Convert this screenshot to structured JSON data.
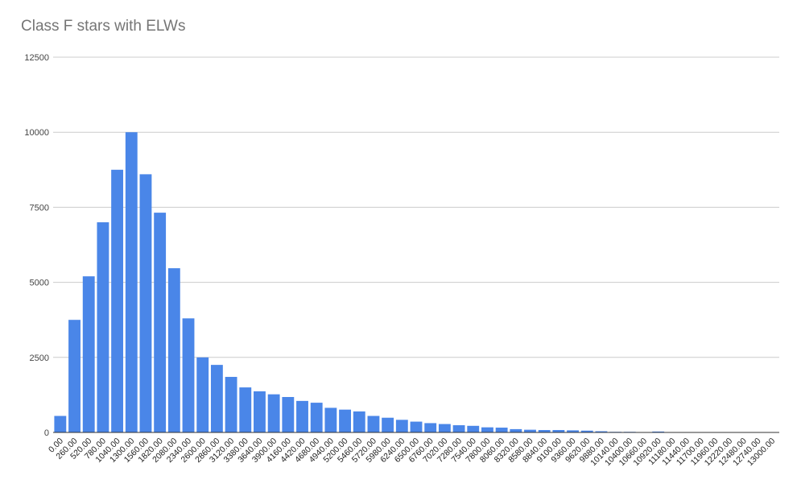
{
  "chart_data": {
    "type": "bar",
    "title": "Class F stars with ELWs",
    "xlabel": "",
    "ylabel": "",
    "ylim": [
      0,
      12500
    ],
    "yticks": [
      "0",
      "2500",
      "5000",
      "7500",
      "10000",
      "12500"
    ],
    "grid": true,
    "legend": "none",
    "bar_color": "#4a86e8",
    "categories": [
      "0.00",
      "260.00",
      "520.00",
      "780.00",
      "1040.00",
      "1300.00",
      "1560.00",
      "1820.00",
      "2080.00",
      "2340.00",
      "2600.00",
      "2860.00",
      "3120.00",
      "3380.00",
      "3640.00",
      "3900.00",
      "4160.00",
      "4420.00",
      "4680.00",
      "4940.00",
      "5200.00",
      "5460.00",
      "5720.00",
      "5980.00",
      "6240.00",
      "6500.00",
      "6760.00",
      "7020.00",
      "7280.00",
      "7540.00",
      "7800.00",
      "8060.00",
      "8320.00",
      "8580.00",
      "8840.00",
      "9100.00",
      "9360.00",
      "9620.00",
      "9880.00",
      "10140.00",
      "10400.00",
      "10660.00",
      "10920.00",
      "11180.00",
      "11440.00",
      "11700.00",
      "11960.00",
      "12220.00",
      "12480.00",
      "12740.00",
      "13000.00"
    ],
    "values": [
      550,
      3750,
      5200,
      7000,
      8750,
      10000,
      8600,
      7320,
      5470,
      3800,
      2500,
      2250,
      1850,
      1500,
      1370,
      1270,
      1180,
      1050,
      990,
      820,
      760,
      700,
      550,
      490,
      420,
      360,
      310,
      280,
      240,
      220,
      170,
      160,
      110,
      90,
      80,
      80,
      70,
      60,
      40,
      20,
      20,
      0,
      30,
      0,
      0,
      0,
      0,
      0,
      0,
      0,
      0
    ]
  }
}
